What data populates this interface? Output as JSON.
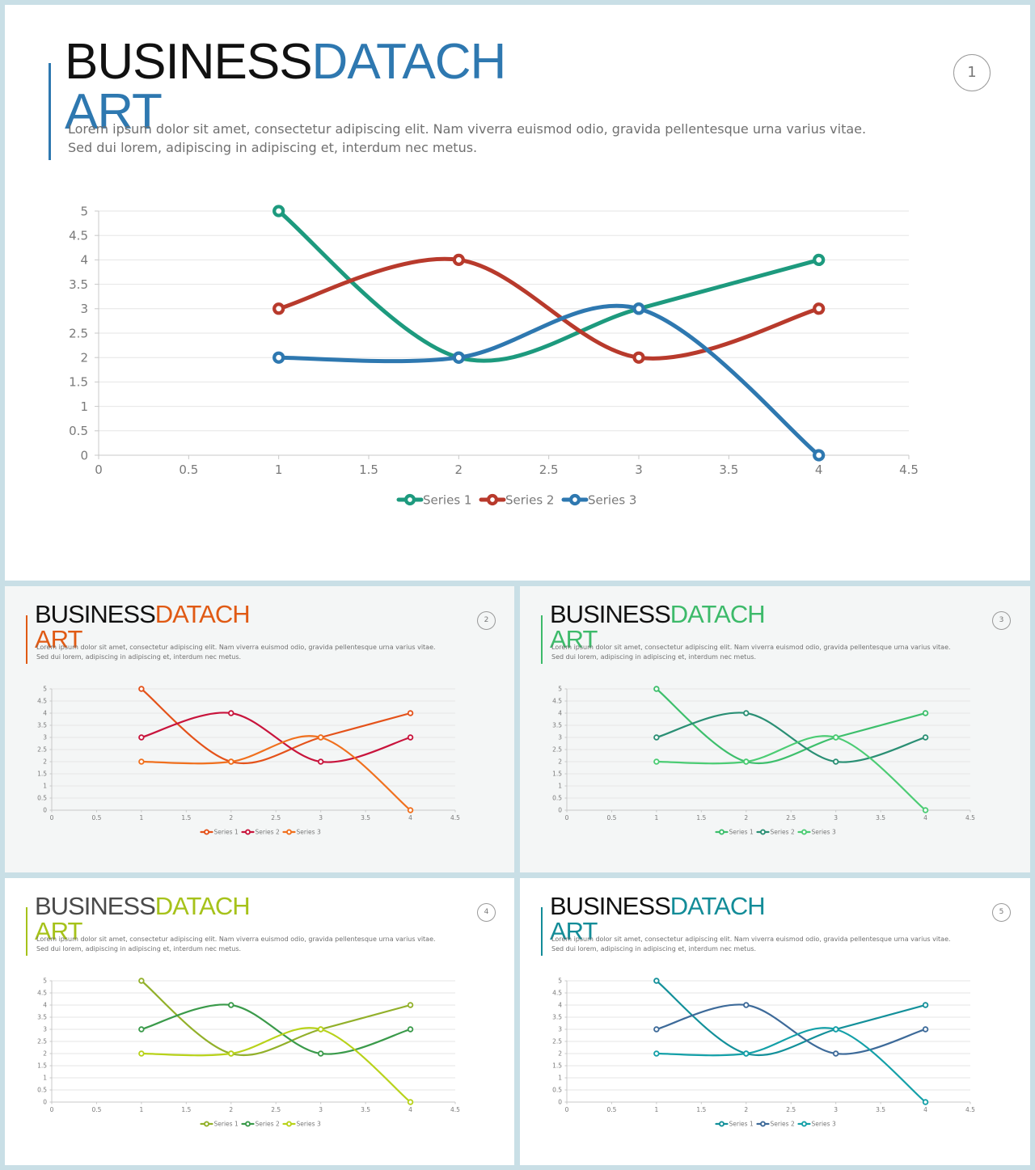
{
  "slides": [
    {
      "id": "slide-1",
      "page": "1",
      "title_a": "BUSINESS",
      "title_b": "DATACH",
      "title_c": "ART",
      "accent": "#2e78b0",
      "body": "Lorem ipsum dolor sit amet, consectetur adipiscing elit. Nam viverra euismod odio, gravida pellentesque urna varius vitae. Sed dui lorem, adipiscing in adipiscing et, interdum nec metus.",
      "series_colors": [
        "#1d9a7e",
        "#b83a2c",
        "#2e78b0"
      ]
    },
    {
      "id": "slide-2",
      "page": "2",
      "title_a": "BUSINESS",
      "title_b": "DATACH",
      "title_c": "ART",
      "accent": "#e05a14",
      "body": "Lorem ipsum dolor sit amet, consectetur adipiscing elit. Nam viverra euismod odio, gravida pellentesque urna varius vitae. Sed dui lorem, adipiscing in adipiscing et, interdum nec metus.",
      "series_colors": [
        "#e4521a",
        "#c8143c",
        "#f0701e"
      ]
    },
    {
      "id": "slide-3",
      "page": "3",
      "title_a": "BUSINESS",
      "title_b": "DATACH",
      "title_c": "ART",
      "accent": "#3dba6a",
      "body": "Lorem ipsum dolor sit amet, consectetur adipiscing elit. Nam viverra euismod odio, gravida pellentesque urna varius vitae. Sed dui lorem, adipiscing in adipiscing et, interdum nec metus.",
      "series_colors": [
        "#3dbf6c",
        "#2a8f74",
        "#4ccc74"
      ]
    },
    {
      "id": "slide-4",
      "page": "4",
      "title_a": "BUSINESS",
      "title_b": "DATACH",
      "title_c": "ART",
      "accent": "#a6c21a",
      "body": "Lorem ipsum dolor sit amet, consectetur adipiscing elit. Nam viverra euismod odio, gravida pellentesque urna varius vitae. Sed dui lorem, adipiscing in adipiscing et, interdum nec metus.",
      "series_colors": [
        "#92b02a",
        "#3a9a4a",
        "#b8d21a"
      ]
    },
    {
      "id": "slide-5",
      "page": "5",
      "title_a": "BUSINESS",
      "title_b": "DATACH",
      "title_c": "ART",
      "accent": "#138c98",
      "body": "Lorem ipsum dolor sit amet, consectetur adipiscing elit. Nam viverra euismod odio, gravida pellentesque urna varius vitae. Sed dui lorem, adipiscing in adipiscing et, interdum nec metus.",
      "series_colors": [
        "#13909a",
        "#3d6a99",
        "#14a0a8"
      ]
    }
  ],
  "chart_data": {
    "type": "scatter",
    "smooth": true,
    "xlim": [
      0,
      4.5
    ],
    "ylim": [
      0,
      5
    ],
    "xticks": [
      "0",
      "0.5",
      "1",
      "1.5",
      "2",
      "2.5",
      "3",
      "3.5",
      "4",
      "4.5"
    ],
    "yticks": [
      "0",
      "0.5",
      "1",
      "1.5",
      "2",
      "2.5",
      "3",
      "3.5",
      "4",
      "4.5",
      "5"
    ],
    "grid": "horizontal",
    "legend_position": "bottom",
    "series": [
      {
        "name": "Series 1",
        "points": [
          [
            1,
            5
          ],
          [
            2,
            2
          ],
          [
            3,
            3
          ],
          [
            4,
            4
          ]
        ]
      },
      {
        "name": "Series 2",
        "points": [
          [
            1,
            3
          ],
          [
            2,
            4
          ],
          [
            3,
            2
          ],
          [
            4,
            3
          ]
        ]
      },
      {
        "name": "Series 3",
        "points": [
          [
            1,
            2
          ],
          [
            2,
            2
          ],
          [
            3,
            3
          ],
          [
            4,
            0
          ]
        ]
      }
    ]
  }
}
